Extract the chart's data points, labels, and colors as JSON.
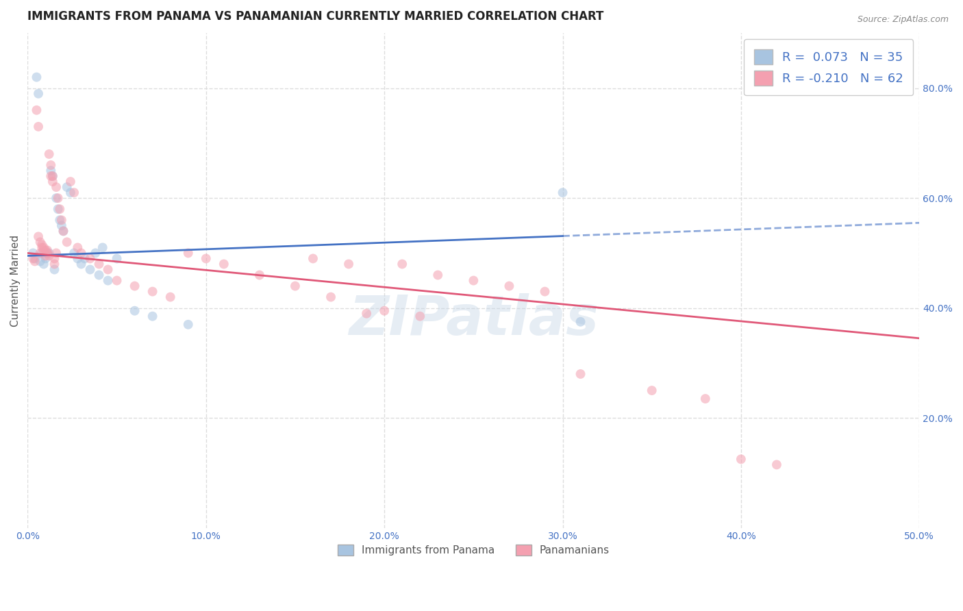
{
  "title": "IMMIGRANTS FROM PANAMA VS PANAMANIAN CURRENTLY MARRIED CORRELATION CHART",
  "source_text": "Source: ZipAtlas.com",
  "ylabel": "Currently Married",
  "xlabel_legend1": "Immigrants from Panama",
  "xlabel_legend2": "Panamanians",
  "xmin": 0.0,
  "xmax": 0.5,
  "ymin": 0.0,
  "ymax": 0.9,
  "yticks": [
    0.2,
    0.4,
    0.6,
    0.8
  ],
  "ytick_labels": [
    "20.0%",
    "40.0%",
    "60.0%",
    "80.0%"
  ],
  "xticks": [
    0.0,
    0.1,
    0.2,
    0.3,
    0.4,
    0.5
  ],
  "xtick_labels": [
    "0.0%",
    "10.0%",
    "20.0%",
    "30.0%",
    "40.0%",
    "50.0%"
  ],
  "blue_R": 0.073,
  "blue_N": 35,
  "pink_R": -0.21,
  "pink_N": 62,
  "blue_color": "#a8c4e0",
  "blue_line_color": "#4472c4",
  "pink_color": "#f4a0b0",
  "pink_line_color": "#e05878",
  "legend_box_blue": "#a8c4e0",
  "legend_box_pink": "#f4a0b0",
  "legend_text_color": "#4472c4",
  "watermark": "ZIPatlas",
  "blue_x": [
    0.003,
    0.004,
    0.005,
    0.006,
    0.007,
    0.008,
    0.009,
    0.01,
    0.011,
    0.012,
    0.013,
    0.014,
    0.015,
    0.016,
    0.017,
    0.018,
    0.019,
    0.02,
    0.022,
    0.024,
    0.026,
    0.028,
    0.03,
    0.035,
    0.04,
    0.045,
    0.05,
    0.06,
    0.07,
    0.09,
    0.038,
    0.042,
    0.032,
    0.3,
    0.31
  ],
  "blue_y": [
    0.5,
    0.49,
    0.82,
    0.79,
    0.485,
    0.5,
    0.48,
    0.49,
    0.5,
    0.5,
    0.65,
    0.64,
    0.47,
    0.6,
    0.58,
    0.56,
    0.55,
    0.54,
    0.62,
    0.61,
    0.5,
    0.49,
    0.48,
    0.47,
    0.46,
    0.45,
    0.49,
    0.395,
    0.385,
    0.37,
    0.5,
    0.51,
    0.49,
    0.61,
    0.375
  ],
  "pink_x": [
    0.003,
    0.004,
    0.005,
    0.006,
    0.007,
    0.008,
    0.009,
    0.01,
    0.011,
    0.012,
    0.013,
    0.014,
    0.015,
    0.016,
    0.017,
    0.018,
    0.019,
    0.02,
    0.022,
    0.024,
    0.026,
    0.028,
    0.03,
    0.035,
    0.04,
    0.045,
    0.05,
    0.06,
    0.07,
    0.08,
    0.09,
    0.1,
    0.11,
    0.13,
    0.15,
    0.17,
    0.19,
    0.21,
    0.23,
    0.25,
    0.27,
    0.29,
    0.31,
    0.006,
    0.007,
    0.008,
    0.009,
    0.01,
    0.011,
    0.012,
    0.013,
    0.014,
    0.015,
    0.016,
    0.16,
    0.18,
    0.2,
    0.22,
    0.35,
    0.38,
    0.4,
    0.42
  ],
  "pink_y": [
    0.49,
    0.485,
    0.76,
    0.73,
    0.5,
    0.51,
    0.505,
    0.495,
    0.505,
    0.68,
    0.66,
    0.64,
    0.49,
    0.62,
    0.6,
    0.58,
    0.56,
    0.54,
    0.52,
    0.63,
    0.61,
    0.51,
    0.5,
    0.49,
    0.48,
    0.47,
    0.45,
    0.44,
    0.43,
    0.42,
    0.5,
    0.49,
    0.48,
    0.46,
    0.44,
    0.42,
    0.39,
    0.48,
    0.46,
    0.45,
    0.44,
    0.43,
    0.28,
    0.53,
    0.52,
    0.515,
    0.51,
    0.505,
    0.5,
    0.495,
    0.64,
    0.63,
    0.48,
    0.5,
    0.49,
    0.48,
    0.395,
    0.385,
    0.25,
    0.235,
    0.125,
    0.115
  ],
  "grid_color": "#dddddd",
  "bg_color": "#ffffff",
  "title_fontsize": 12,
  "axis_label_fontsize": 11,
  "tick_fontsize": 10,
  "marker_size": 10,
  "marker_alpha": 0.55,
  "line_width": 2.0,
  "blue_line_x0": 0.0,
  "blue_line_y0": 0.495,
  "blue_line_x1": 0.5,
  "blue_line_y1": 0.555,
  "pink_line_x0": 0.0,
  "pink_line_y0": 0.5,
  "pink_line_x1": 0.5,
  "pink_line_y1": 0.345
}
